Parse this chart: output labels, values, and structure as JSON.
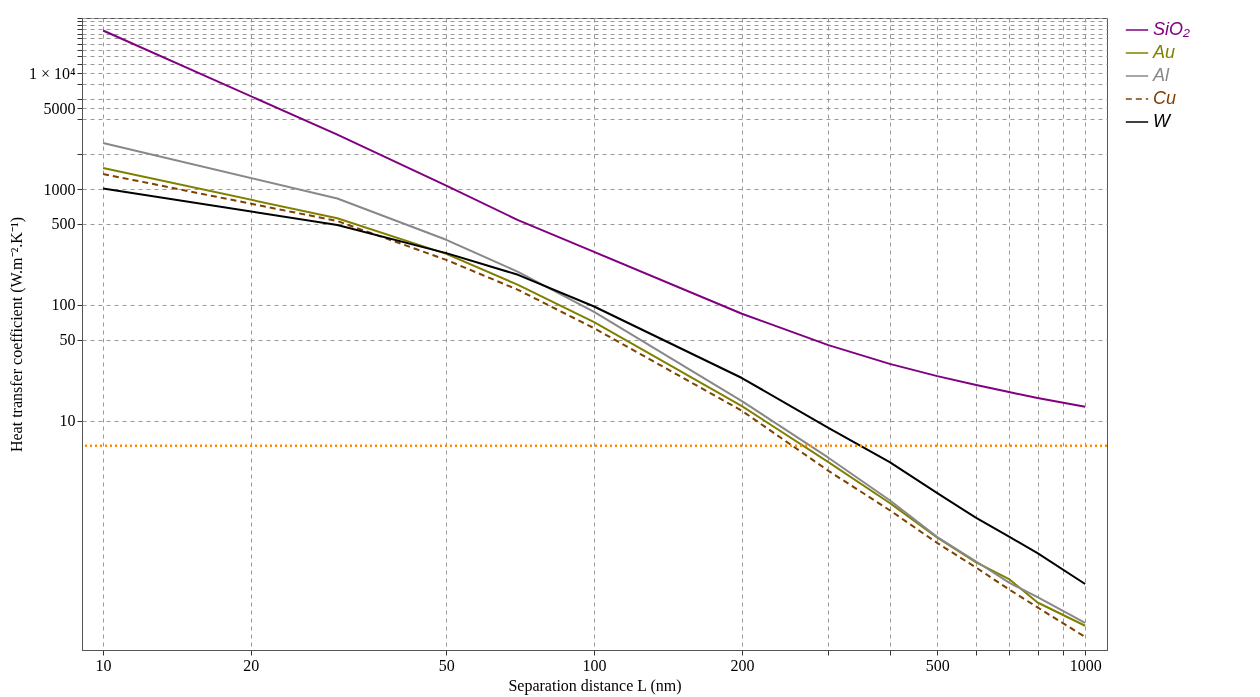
{
  "chart_data": {
    "type": "line",
    "xlabel": "Separation distance L (nm)",
    "ylabel": "Heat transfer coefficient (W.m⁻².K⁻¹)",
    "x": [
      10,
      30,
      50,
      70,
      100,
      200,
      300,
      400,
      500,
      600,
      700,
      800,
      1000
    ],
    "series": [
      {
        "name": "SiO₂",
        "color": "#800080",
        "values": [
          23400,
          2950,
          1070,
          540,
          287,
          84,
          45,
          31,
          24.3,
          20.4,
          17.7,
          15.7,
          13.2
        ]
      },
      {
        "name": "Au",
        "color": "#808000",
        "values": [
          1520,
          560,
          276,
          149,
          71,
          13.4,
          4.4,
          1.95,
          0.98,
          0.6,
          0.43,
          0.27,
          0.17
        ]
      },
      {
        "name": "Al",
        "color": "#888888",
        "values": [
          2500,
          830,
          365,
          193,
          87,
          14.8,
          4.8,
          2.06,
          0.99,
          0.61,
          0.4,
          0.3,
          0.18
        ]
      },
      {
        "name": "Cu",
        "color": "#804000",
        "line_style": "dashed",
        "values": [
          1350,
          530,
          245,
          135,
          63,
          12.2,
          3.7,
          1.69,
          0.88,
          0.54,
          0.35,
          0.245,
          0.136
        ]
      },
      {
        "name": "W",
        "color": "#000000",
        "values": [
          1010,
          490,
          280,
          182,
          97,
          23.4,
          8.7,
          4.4,
          2.37,
          1.45,
          1.0,
          0.72,
          0.39
        ]
      }
    ],
    "log": "xy",
    "xlim": [
      9.06,
      1108
    ],
    "ylim": [
      0.105,
      30000
    ],
    "xticks": [
      10,
      20,
      50,
      100,
      200,
      {
        "value": 300,
        "label": null
      },
      {
        "value": 400,
        "label": null
      },
      500,
      {
        "value": 600,
        "label": null
      },
      {
        "value": 700,
        "label": null
      },
      {
        "value": 800,
        "label": null
      },
      {
        "value": 900,
        "label": null
      },
      1000
    ],
    "yticks": [
      10,
      50,
      100,
      500,
      1000,
      {
        "value": 2000,
        "label": null
      },
      {
        "value": 4000,
        "label": null
      },
      5000,
      {
        "value": 6000,
        "label": null
      },
      {
        "value": 8000,
        "label": null
      },
      {
        "value": 10000,
        "label": "1 × 10⁴"
      },
      {
        "value": 12000,
        "label": null
      },
      {
        "value": 14000,
        "label": null
      },
      {
        "value": 16000,
        "label": null
      },
      {
        "value": 18000,
        "label": null
      },
      {
        "value": 20000,
        "label": null
      },
      {
        "value": 22000,
        "label": null
      },
      {
        "value": 24000,
        "label": null
      },
      {
        "value": 26000,
        "label": null
      },
      {
        "value": 28000,
        "label": null
      },
      {
        "value": 30000,
        "label": null
      }
    ],
    "ref_lines": [
      {
        "axis": "y",
        "value": 6.1,
        "color": "#ff8c00",
        "line_style": "dotted"
      }
    ],
    "grid": true,
    "legend": "right",
    "line_style": "solid"
  }
}
